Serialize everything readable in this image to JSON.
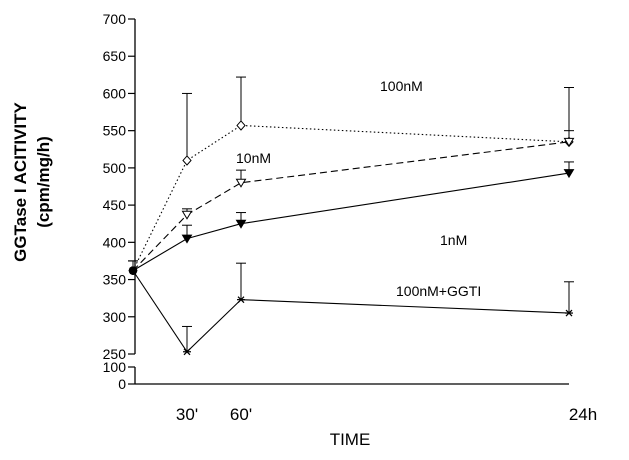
{
  "chart_data": {
    "type": "line",
    "title": "",
    "xlabel": "TIME",
    "ylabel_line1": "GGTase I ACITIVITY",
    "ylabel_line2": "(cpm/mg/h)",
    "x_ticks": [
      {
        "x": 30,
        "label": "30'"
      },
      {
        "x": 60,
        "label": "60'"
      },
      {
        "x": 1440,
        "label": "24h"
      }
    ],
    "y_ticks_upper": [
      250,
      300,
      350,
      400,
      450,
      500,
      550,
      600,
      650,
      700
    ],
    "y_ticks_lower": [
      0,
      100
    ],
    "ylim_upper": [
      250,
      700
    ],
    "ylim_lower": [
      0,
      100
    ],
    "grid": false,
    "series": [
      {
        "name": "100nM",
        "line_style": "dotted",
        "marker": "diamond-open",
        "x": [
          0,
          30,
          60,
          1440
        ],
        "y": [
          362,
          510,
          557,
          535
        ],
        "err_upper": [
          375,
          600,
          622,
          608
        ]
      },
      {
        "name": "10nM",
        "line_style": "dashed",
        "marker": "triangle-down-open",
        "x": [
          0,
          30,
          60,
          1440
        ],
        "y": [
          362,
          437,
          480,
          535
        ],
        "err_upper": [
          375,
          445,
          497,
          550
        ]
      },
      {
        "name": "1nM",
        "line_style": "solid",
        "marker": "triangle-down-filled",
        "x": [
          0,
          30,
          60,
          1440
        ],
        "y": [
          362,
          405,
          425,
          493
        ],
        "err_upper": [
          375,
          423,
          440,
          508
        ]
      },
      {
        "name": "100nM+GGTI",
        "line_style": "solid",
        "marker": "asterisk",
        "x": [
          0,
          30,
          60,
          1440
        ],
        "y": [
          362,
          253,
          323,
          305
        ],
        "err_upper": [
          375,
          287,
          372,
          347
        ]
      }
    ]
  }
}
